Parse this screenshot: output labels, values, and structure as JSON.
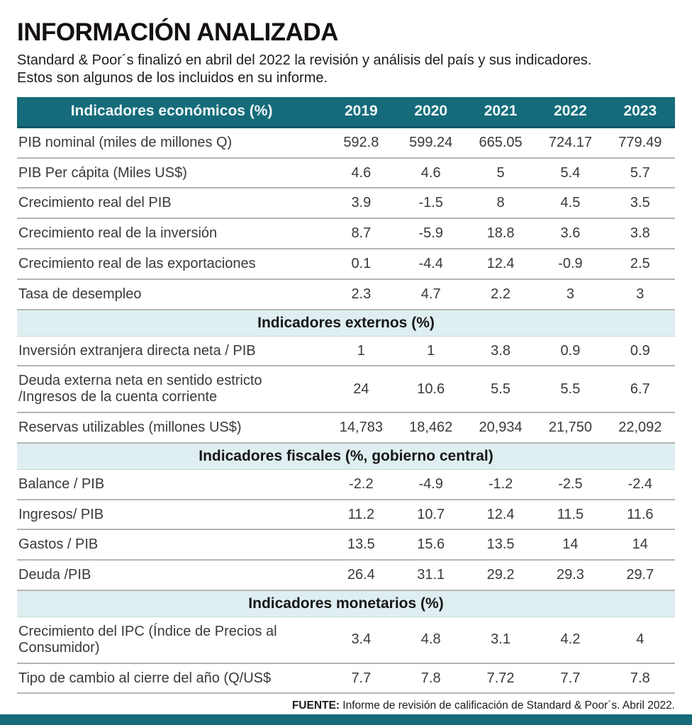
{
  "page": {
    "title": "INFORMACIÓN ANALIZADA",
    "subtitle": "Standard & Poor´s finalizó en abril del 2022 la revisión y análisis del país y sus indicadores.\nEstos son algunos de los incluidos en su informe.",
    "source_label": "FUENTE:",
    "source_text": " Informe de revisión de calificación de Standard & Poor´s. Abril 2022."
  },
  "colors": {
    "header_bg": "#156b7a",
    "header_text": "#f0f8f9",
    "section_band_bg": "#dfeef0",
    "row_separator": "#b5b5b5",
    "bottom_accent_bar": "#156b7a"
  },
  "chart_data": {
    "type": "table",
    "title": "Indicadores económicos (%)",
    "columns": [
      "2019",
      "2020",
      "2021",
      "2022",
      "2023"
    ],
    "sections": [
      {
        "header": "Indicadores económicos (%)",
        "rows": [
          {
            "label": "PIB nominal (miles de millones Q)",
            "values": [
              "592.8",
              "599.24",
              "665.05",
              "724.17",
              "779.49"
            ]
          },
          {
            "label": "PIB Per cápita (Miles US$)",
            "values": [
              "4.6",
              "4.6",
              "5",
              "5.4",
              "5.7"
            ]
          },
          {
            "label": "Crecimiento real del PIB",
            "values": [
              "3.9",
              "-1.5",
              "8",
              "4.5",
              "3.5"
            ]
          },
          {
            "label": "Crecimiento real de la inversión",
            "values": [
              "8.7",
              "-5.9",
              "18.8",
              "3.6",
              "3.8"
            ]
          },
          {
            "label": "Crecimiento real de las exportaciones",
            "values": [
              "0.1",
              "-4.4",
              "12.4",
              "-0.9",
              "2.5"
            ]
          },
          {
            "label": "Tasa de desempleo",
            "values": [
              "2.3",
              "4.7",
              "2.2",
              "3",
              "3"
            ]
          }
        ]
      },
      {
        "header": "Indicadores externos (%)",
        "rows": [
          {
            "label": "Inversión extranjera directa neta / PIB",
            "values": [
              "1",
              "1",
              "3.8",
              "0.9",
              "0.9"
            ]
          },
          {
            "label": "Deuda externa neta en sentido estricto\n/Ingresos de la cuenta corriente",
            "values": [
              "24",
              "10.6",
              "5.5",
              "5.5",
              "6.7"
            ]
          },
          {
            "label": "Reservas utilizables (millones US$)",
            "values": [
              "14,783",
              "18,462",
              "20,934",
              "21,750",
              "22,092"
            ]
          }
        ]
      },
      {
        "header": "Indicadores fiscales (%, gobierno central)",
        "rows": [
          {
            "label": "Balance / PIB",
            "values": [
              "-2.2",
              "-4.9",
              "-1.2",
              "-2.5",
              "-2.4"
            ]
          },
          {
            "label": "Ingresos/ PIB",
            "values": [
              "11.2",
              "10.7",
              "12.4",
              "11.5",
              "11.6"
            ]
          },
          {
            "label": "Gastos / PIB",
            "values": [
              "13.5",
              "15.6",
              "13.5",
              "14",
              "14"
            ]
          },
          {
            "label": "Deuda /PIB",
            "values": [
              "26.4",
              "31.1",
              "29.2",
              "29.3",
              "29.7"
            ]
          }
        ]
      },
      {
        "header": "Indicadores monetarios (%)",
        "rows": [
          {
            "label": "Crecimiento del IPC (Índice de Precios al\nConsumidor)",
            "values": [
              "3.4",
              "4.8",
              "3.1",
              "4.2",
              "4"
            ]
          },
          {
            "label": "Tipo de cambio al cierre del año (Q/US$",
            "values": [
              "7.7",
              "7.8",
              "7.72",
              "7.7",
              "7.8"
            ]
          }
        ]
      }
    ]
  }
}
